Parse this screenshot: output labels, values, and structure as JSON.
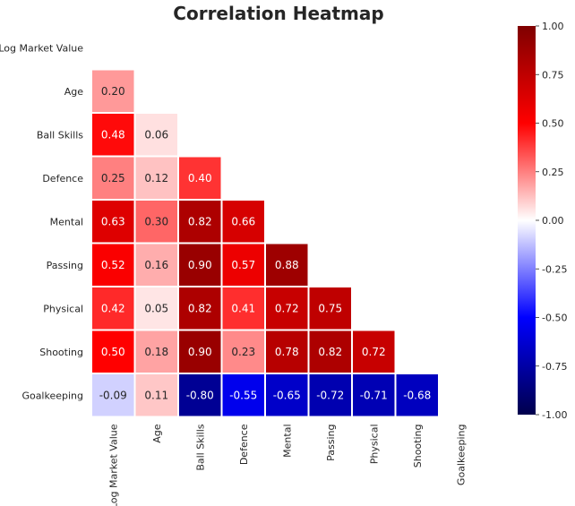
{
  "chart_data": {
    "type": "heatmap",
    "title": "Correlation Heatmap",
    "variables": [
      "Log Market Value",
      "Age",
      "Ball Skills",
      "Defence",
      "Mental",
      "Passing",
      "Physical",
      "Shooting",
      "Goalkeeping"
    ],
    "mask": "upper-triangle-including-diagonal",
    "cells": [
      {
        "row": 1,
        "col": 0,
        "value": 0.2,
        "label": "0.20"
      },
      {
        "row": 2,
        "col": 0,
        "value": 0.48,
        "label": "0.48"
      },
      {
        "row": 2,
        "col": 1,
        "value": 0.06,
        "label": "0.06"
      },
      {
        "row": 3,
        "col": 0,
        "value": 0.25,
        "label": "0.25"
      },
      {
        "row": 3,
        "col": 1,
        "value": 0.12,
        "label": "0.12"
      },
      {
        "row": 3,
        "col": 2,
        "value": 0.4,
        "label": "0.40"
      },
      {
        "row": 4,
        "col": 0,
        "value": 0.63,
        "label": "0.63"
      },
      {
        "row": 4,
        "col": 1,
        "value": 0.3,
        "label": "0.30"
      },
      {
        "row": 4,
        "col": 2,
        "value": 0.82,
        "label": "0.82"
      },
      {
        "row": 4,
        "col": 3,
        "value": 0.66,
        "label": "0.66"
      },
      {
        "row": 5,
        "col": 0,
        "value": 0.52,
        "label": "0.52"
      },
      {
        "row": 5,
        "col": 1,
        "value": 0.16,
        "label": "0.16"
      },
      {
        "row": 5,
        "col": 2,
        "value": 0.9,
        "label": "0.90"
      },
      {
        "row": 5,
        "col": 3,
        "value": 0.57,
        "label": "0.57"
      },
      {
        "row": 5,
        "col": 4,
        "value": 0.88,
        "label": "0.88"
      },
      {
        "row": 6,
        "col": 0,
        "value": 0.42,
        "label": "0.42"
      },
      {
        "row": 6,
        "col": 1,
        "value": 0.05,
        "label": "0.05"
      },
      {
        "row": 6,
        "col": 2,
        "value": 0.82,
        "label": "0.82"
      },
      {
        "row": 6,
        "col": 3,
        "value": 0.41,
        "label": "0.41"
      },
      {
        "row": 6,
        "col": 4,
        "value": 0.72,
        "label": "0.72"
      },
      {
        "row": 6,
        "col": 5,
        "value": 0.75,
        "label": "0.75"
      },
      {
        "row": 7,
        "col": 0,
        "value": 0.5,
        "label": "0.50"
      },
      {
        "row": 7,
        "col": 1,
        "value": 0.18,
        "label": "0.18"
      },
      {
        "row": 7,
        "col": 2,
        "value": 0.9,
        "label": "0.90"
      },
      {
        "row": 7,
        "col": 3,
        "value": 0.23,
        "label": "0.23"
      },
      {
        "row": 7,
        "col": 4,
        "value": 0.78,
        "label": "0.78"
      },
      {
        "row": 7,
        "col": 5,
        "value": 0.82,
        "label": "0.82"
      },
      {
        "row": 7,
        "col": 6,
        "value": 0.72,
        "label": "0.72"
      },
      {
        "row": 8,
        "col": 0,
        "value": -0.09,
        "label": "-0.09"
      },
      {
        "row": 8,
        "col": 1,
        "value": 0.11,
        "label": "0.11"
      },
      {
        "row": 8,
        "col": 2,
        "value": -0.8,
        "label": "-0.80"
      },
      {
        "row": 8,
        "col": 3,
        "value": -0.55,
        "label": "-0.55"
      },
      {
        "row": 8,
        "col": 4,
        "value": -0.65,
        "label": "-0.65"
      },
      {
        "row": 8,
        "col": 5,
        "value": -0.72,
        "label": "-0.72"
      },
      {
        "row": 8,
        "col": 6,
        "value": -0.71,
        "label": "-0.71"
      },
      {
        "row": 8,
        "col": 7,
        "value": -0.68,
        "label": "-0.68"
      }
    ],
    "colorbar": {
      "colormap": "seismic",
      "vmin": -1.0,
      "vmax": 1.0,
      "ticks": [
        "1.00",
        "0.75",
        "0.50",
        "0.25",
        "0.00",
        "-0.25",
        "-0.50",
        "-0.75",
        "-1.00"
      ],
      "tick_values": [
        1.0,
        0.75,
        0.5,
        0.25,
        0.0,
        -0.25,
        -0.5,
        -0.75,
        -1.0
      ]
    },
    "colors": {
      "seismic_stops": [
        "#00004c",
        "#0000ff",
        "#ffffff",
        "#ff0000",
        "#7f0000"
      ],
      "cell_border": "#ffffff",
      "text_dark": "#262626",
      "text_light": "#ffffff"
    },
    "grid": false
  }
}
